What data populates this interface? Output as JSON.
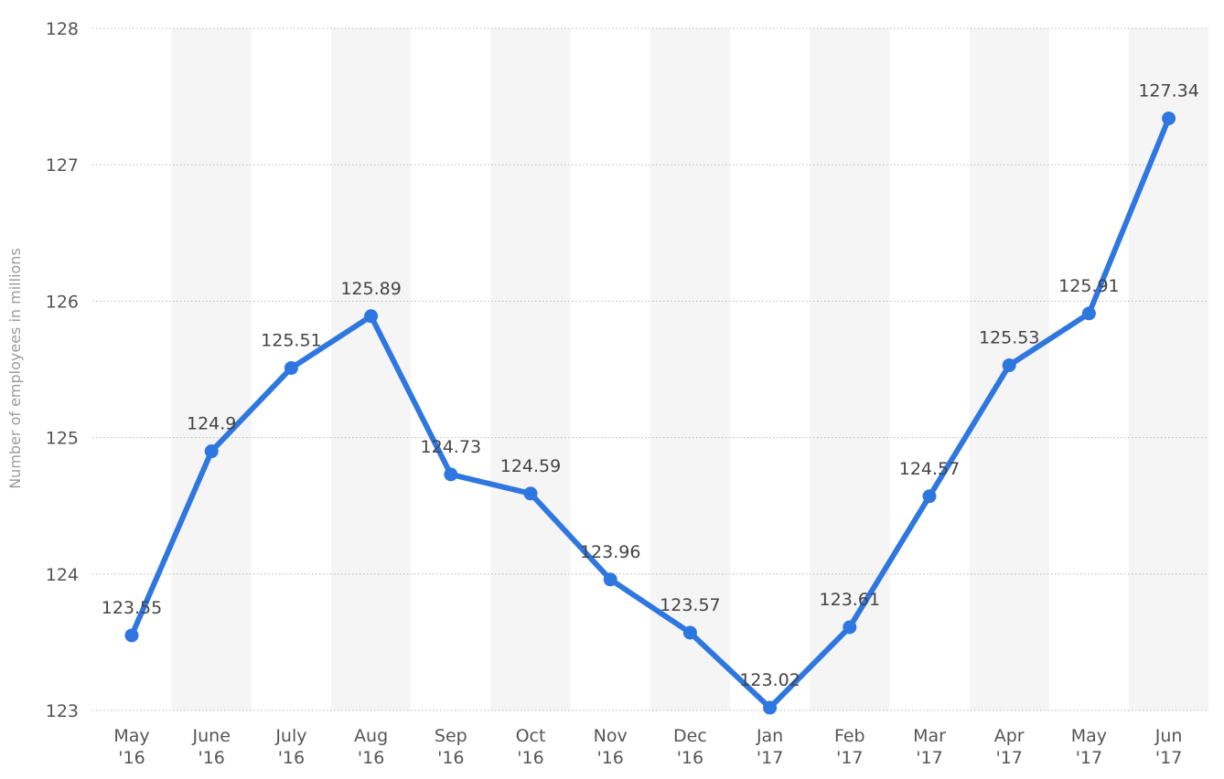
{
  "chart_data": {
    "type": "line",
    "title": "",
    "xlabel": "",
    "ylabel": "Number of employees in millions",
    "ylim": [
      123,
      128
    ],
    "y_ticks": [
      "123",
      "124",
      "125",
      "126",
      "127",
      "128"
    ],
    "grid": true,
    "legend": "none",
    "categories": [
      [
        "May",
        "'16"
      ],
      [
        "June",
        "'16"
      ],
      [
        "July",
        "'16"
      ],
      [
        "Aug",
        "'16"
      ],
      [
        "Sep",
        "'16"
      ],
      [
        "Oct",
        "'16"
      ],
      [
        "Nov",
        "'16"
      ],
      [
        "Dec",
        "'16"
      ],
      [
        "Jan",
        "'17"
      ],
      [
        "Feb",
        "'17"
      ],
      [
        "Mar",
        "'17"
      ],
      [
        "Apr",
        "'17"
      ],
      [
        "May",
        "'17"
      ],
      [
        "Jun",
        "'17"
      ]
    ],
    "series": [
      {
        "values": [
          123.55,
          124.9,
          125.51,
          125.89,
          124.73,
          124.59,
          123.96,
          123.57,
          123.02,
          123.61,
          124.57,
          125.53,
          125.91,
          127.34
        ],
        "data_labels": [
          "123.55",
          "124.9",
          "125.51",
          "125.89",
          "124.73",
          "124.59",
          "123.96",
          "123.57",
          "123.02",
          "123.61",
          "124.57",
          "125.53",
          "125.91",
          "127.34"
        ]
      }
    ],
    "colors": {
      "line": "#2f77e0",
      "grid": "#b8b8b8",
      "band": "#f5f5f5",
      "axis": "#cccccc"
    }
  }
}
